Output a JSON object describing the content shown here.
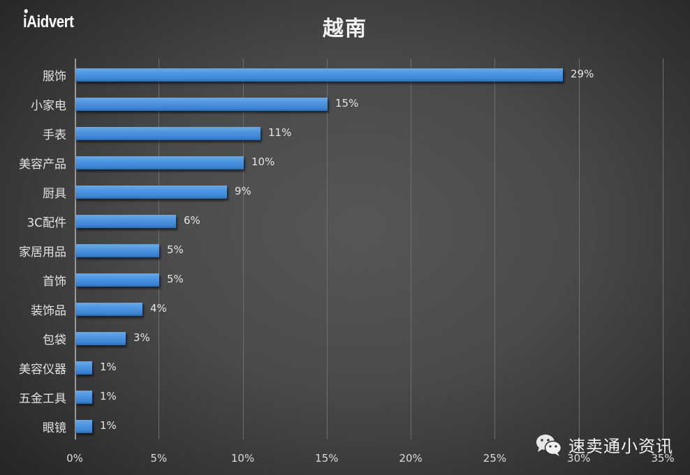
{
  "logo": {
    "text_prefix": "i",
    "text_main": "Aidvert"
  },
  "watermark": {
    "icon": "wechat-icon",
    "text": "速卖通小资讯"
  },
  "colors": {
    "bar": "#4b92df",
    "background_center": "#575757",
    "background_edge": "#262626",
    "grid": "#6e6e6e",
    "text": "#e6e6e6"
  },
  "chart_data": {
    "type": "bar",
    "orientation": "horizontal",
    "title": "越南",
    "xlabel": "",
    "ylabel": "",
    "categories": [
      "服饰",
      "小家电",
      "手表",
      "美容产品",
      "厨具",
      "3C配件",
      "家居用品",
      "首饰",
      "装饰品",
      "包袋",
      "美容仪器",
      "五金工具",
      "眼镜"
    ],
    "values": [
      29,
      15,
      11,
      10,
      9,
      6,
      5,
      5,
      4,
      3,
      1,
      1,
      1
    ],
    "value_labels": [
      "29%",
      "15%",
      "11%",
      "10%",
      "9%",
      "6%",
      "5%",
      "5%",
      "4%",
      "3%",
      "1%",
      "1%",
      "1%"
    ],
    "unit": "%",
    "xlim": [
      0,
      35
    ],
    "xticks": [
      "0%",
      "5%",
      "10%",
      "15%",
      "20%",
      "25%",
      "30%",
      "35%"
    ],
    "xtick_values": [
      0,
      5,
      10,
      15,
      20,
      25,
      30,
      35
    ],
    "grid": {
      "vertical": true,
      "horizontal": false
    },
    "legend": null
  }
}
